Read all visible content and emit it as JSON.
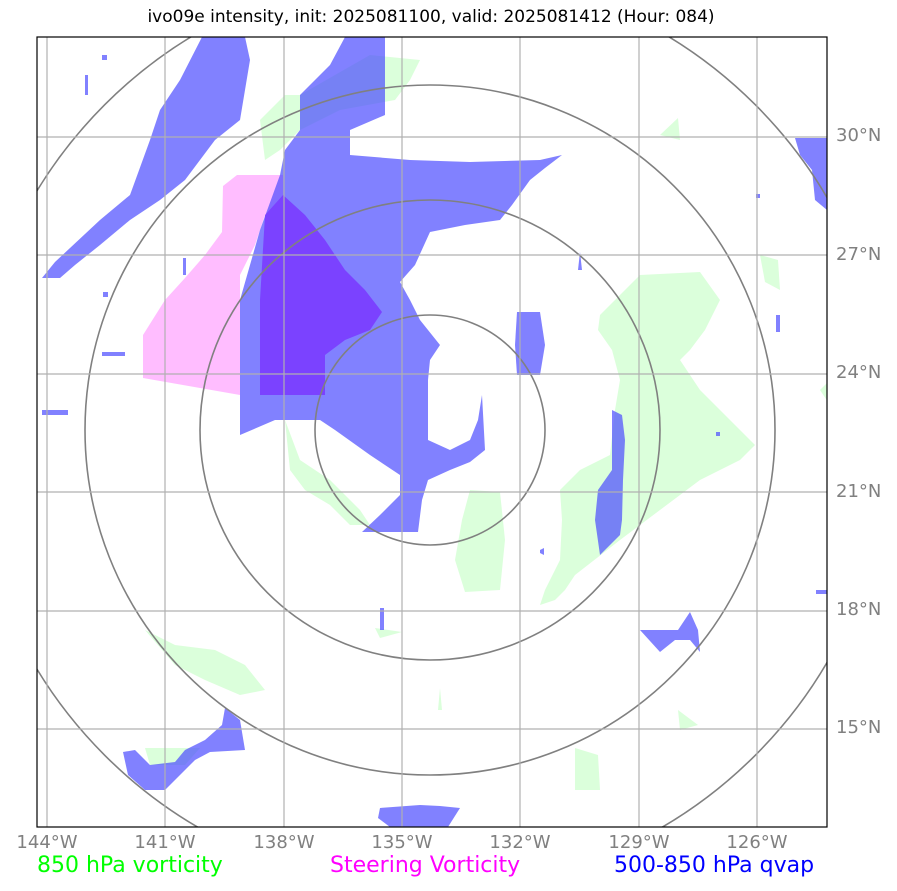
{
  "title": "ivo09e intensity, init: 2025081100, valid: 2025081412 (Hour: 084)",
  "map": {
    "lon_labels": [
      "144°W",
      "141°W",
      "138°W",
      "135°W",
      "132°W",
      "129°W",
      "126°W"
    ],
    "lat_labels": [
      "30°N",
      "27°N",
      "24°N",
      "21°N",
      "18°N",
      "15°N"
    ],
    "lon_range": [
      -144.2,
      -124.2
    ],
    "lat_range": [
      12.6,
      32.6
    ],
    "range_rings": "concentric circles around storm center",
    "colors": {
      "vorticity_850": "#ccffcc",
      "steering_vorticity": "#ff99ff",
      "qvap_500_850": "#4b4bff",
      "gridlines": "#b0b0b0",
      "rings": "#808080"
    }
  },
  "legend": {
    "vorticity_850": "850 hPa vorticity",
    "steering_vorticity": "Steering Vorticity",
    "qvap_500_850": "500-850 hPa qvap"
  }
}
